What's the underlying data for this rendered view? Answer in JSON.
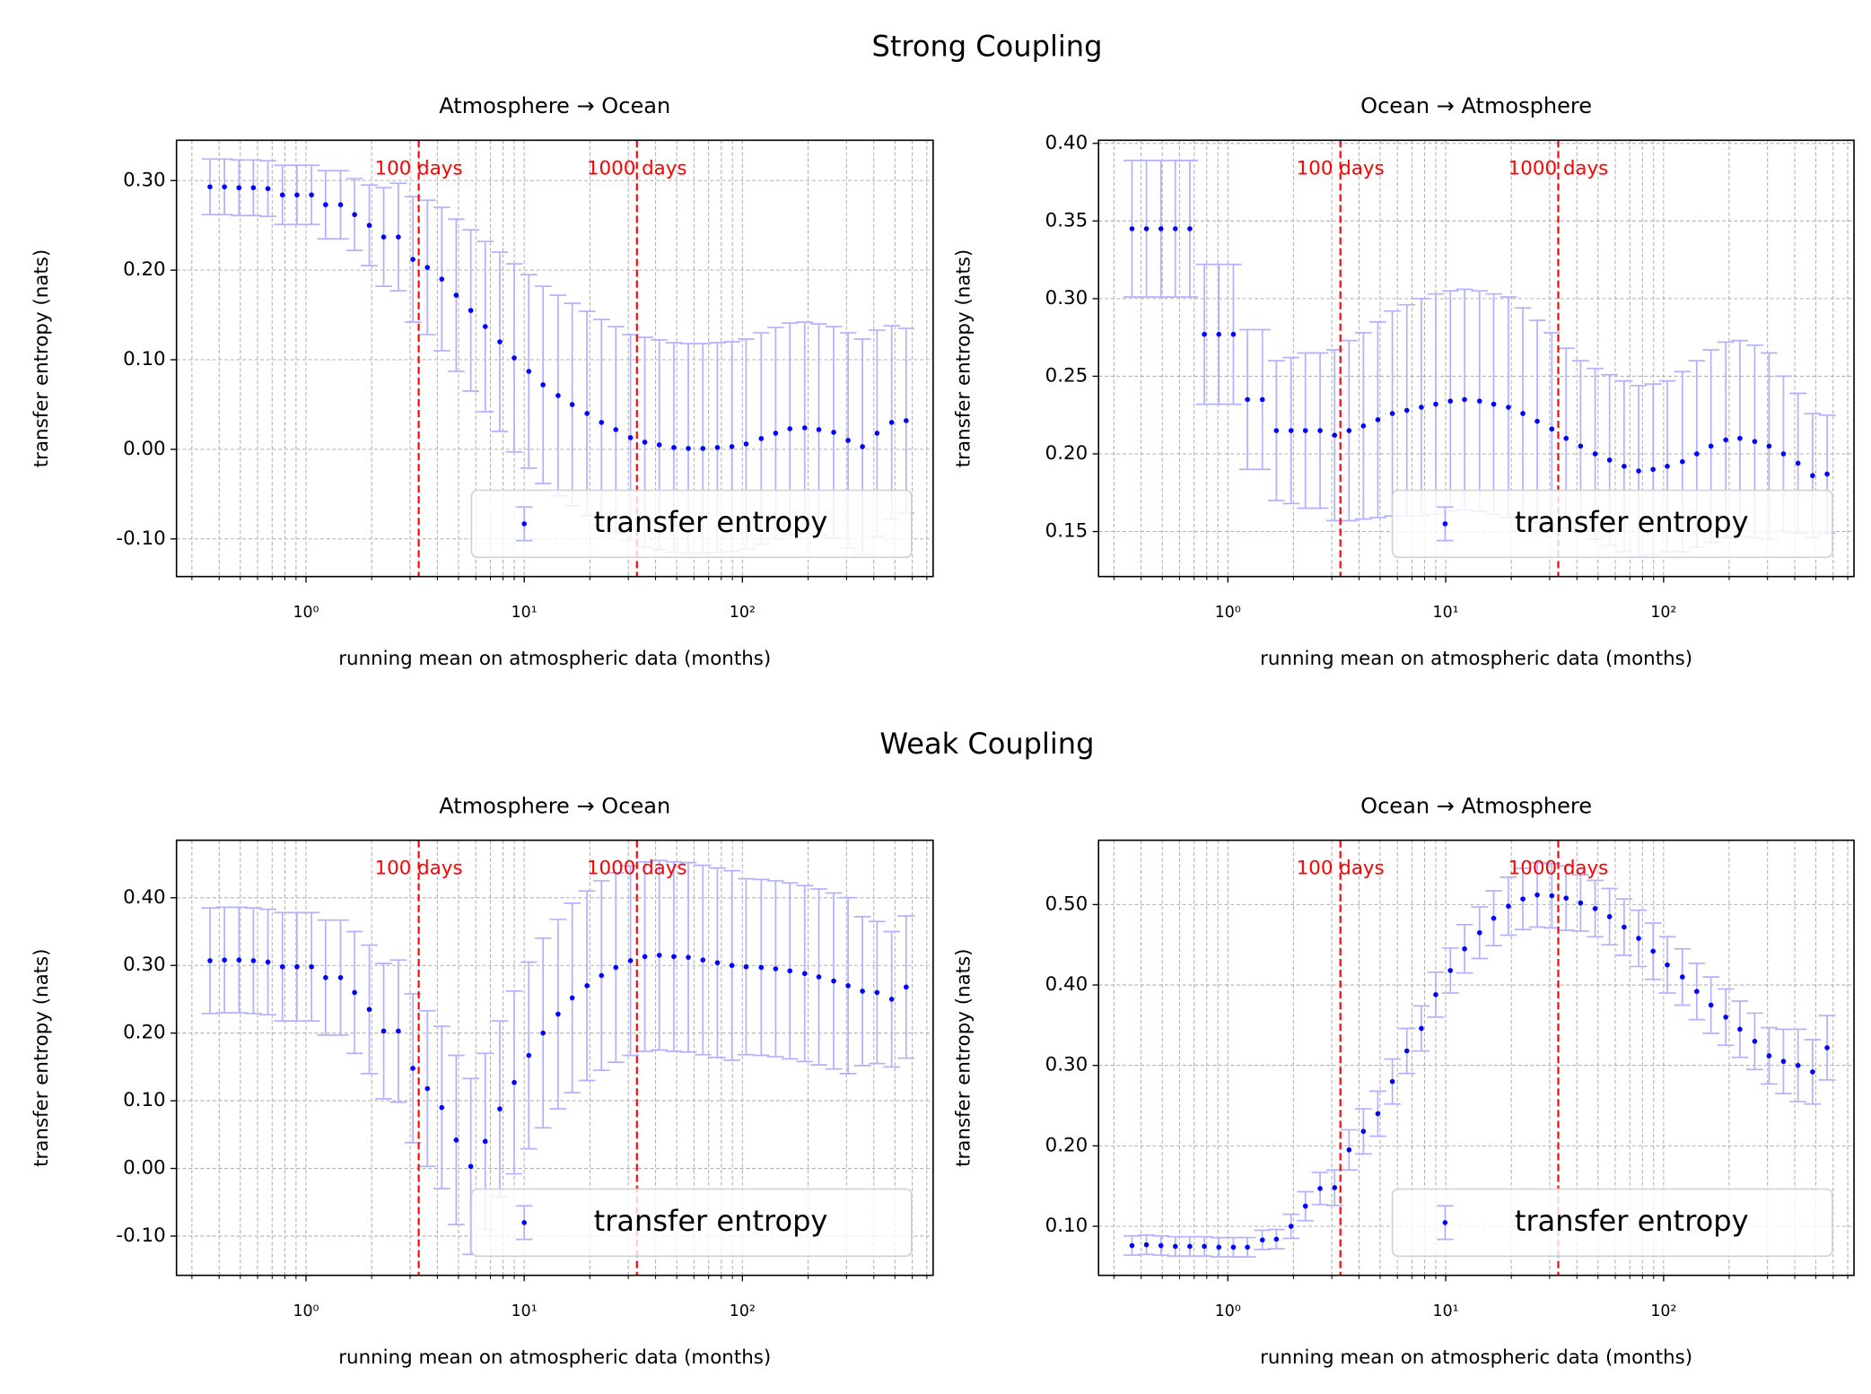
{
  "row_titles": [
    "Strong Coupling",
    "Weak Coupling"
  ],
  "chart_data": [
    {
      "type": "errorbar",
      "title": "Atmosphere → Ocean",
      "xlabel": "running mean on atmospheric data (months)",
      "ylabel": "transfer entropy (nats)",
      "xscale": "log",
      "xlim": [
        0.255,
        748
      ],
      "ylim": [
        -0.142,
        0.345
      ],
      "xticks": [
        {
          "value": 1,
          "label": "10⁰"
        },
        {
          "value": 10,
          "label": "10¹"
        },
        {
          "value": 100,
          "label": "10²"
        }
      ],
      "xticks_minor": [
        0.3,
        0.4,
        0.5,
        0.6,
        0.7,
        0.8,
        0.9,
        2,
        3,
        4,
        5,
        6,
        7,
        8,
        9,
        20,
        30,
        40,
        50,
        60,
        70,
        80,
        90,
        200,
        300,
        400,
        500,
        600,
        700
      ],
      "yticks": [
        {
          "value": -0.1,
          "label": "-0.10"
        },
        {
          "value": 0,
          "label": "0.00"
        },
        {
          "value": 0.1,
          "label": "0.10"
        },
        {
          "value": 0.2,
          "label": "0.20"
        },
        {
          "value": 0.3,
          "label": "0.30"
        }
      ],
      "grid": true,
      "legend": "lower right",
      "vlines": [
        {
          "x": 3.285,
          "label": "100 days",
          "color": "#ff0000"
        },
        {
          "x": 32.85,
          "label": "1000 days",
          "color": "#ff0000"
        }
      ],
      "x": [
        0.363,
        0.423,
        0.493,
        0.574,
        0.669,
        0.78,
        0.909,
        1.06,
        1.23,
        1.44,
        1.67,
        1.95,
        2.27,
        2.65,
        3.09,
        3.6,
        4.19,
        4.88,
        5.69,
        6.63,
        7.73,
        9.0,
        10.5,
        12.2,
        14.3,
        16.6,
        19.4,
        22.6,
        26.3,
        30.7,
        35.7,
        41.6,
        48.5,
        56.5,
        65.9,
        76.8,
        89.5,
        104,
        122,
        142,
        165,
        193,
        224,
        262,
        305,
        355,
        414,
        483,
        563
      ],
      "series": [
        {
          "name": "transfer entropy",
          "color": "#0000ff",
          "error_color": "#b2b2ff",
          "values": [
            0.293,
            0.293,
            0.292,
            0.292,
            0.291,
            0.284,
            0.284,
            0.284,
            0.273,
            0.273,
            0.262,
            0.25,
            0.237,
            0.237,
            0.212,
            0.203,
            0.19,
            0.172,
            0.155,
            0.137,
            0.12,
            0.102,
            0.087,
            0.072,
            0.06,
            0.05,
            0.04,
            0.03,
            0.022,
            0.013,
            0.008,
            0.005,
            0.002,
            0.001,
            0.001,
            0.002,
            0.003,
            0.006,
            0.012,
            0.018,
            0.023,
            0.024,
            0.022,
            0.019,
            0.01,
            0.003,
            0.018,
            0.03,
            0.032
          ],
          "errors": [
            0.031,
            0.031,
            0.031,
            0.031,
            0.031,
            0.033,
            0.033,
            0.033,
            0.038,
            0.038,
            0.04,
            0.045,
            0.055,
            0.06,
            0.07,
            0.075,
            0.08,
            0.085,
            0.09,
            0.095,
            0.1,
            0.105,
            0.108,
            0.11,
            0.112,
            0.113,
            0.114,
            0.115,
            0.115,
            0.115,
            0.117,
            0.117,
            0.117,
            0.117,
            0.117,
            0.117,
            0.117,
            0.117,
            0.118,
            0.118,
            0.118,
            0.118,
            0.118,
            0.118,
            0.12,
            0.12,
            0.115,
            0.108,
            0.103
          ]
        }
      ]
    },
    {
      "type": "errorbar",
      "title": "Ocean → Atmosphere",
      "xlabel": "running mean on atmospheric data (months)",
      "ylabel": "transfer entropy (nats)",
      "xscale": "log",
      "xlim": [
        0.255,
        748
      ],
      "ylim": [
        0.121,
        0.402
      ],
      "xticks": [
        {
          "value": 1,
          "label": "10⁰"
        },
        {
          "value": 10,
          "label": "10¹"
        },
        {
          "value": 100,
          "label": "10²"
        }
      ],
      "xticks_minor": [
        0.3,
        0.4,
        0.5,
        0.6,
        0.7,
        0.8,
        0.9,
        2,
        3,
        4,
        5,
        6,
        7,
        8,
        9,
        20,
        30,
        40,
        50,
        60,
        70,
        80,
        90,
        200,
        300,
        400,
        500,
        600,
        700
      ],
      "yticks": [
        {
          "value": 0.15,
          "label": "0.15"
        },
        {
          "value": 0.2,
          "label": "0.20"
        },
        {
          "value": 0.25,
          "label": "0.25"
        },
        {
          "value": 0.3,
          "label": "0.30"
        },
        {
          "value": 0.35,
          "label": "0.35"
        },
        {
          "value": 0.4,
          "label": "0.40"
        }
      ],
      "grid": true,
      "legend": "lower right",
      "vlines": [
        {
          "x": 3.285,
          "label": "100 days",
          "color": "#ff0000"
        },
        {
          "x": 32.85,
          "label": "1000 days",
          "color": "#ff0000"
        }
      ],
      "x": [
        0.363,
        0.423,
        0.493,
        0.574,
        0.669,
        0.78,
        0.909,
        1.06,
        1.23,
        1.44,
        1.67,
        1.95,
        2.27,
        2.65,
        3.09,
        3.6,
        4.19,
        4.88,
        5.69,
        6.63,
        7.73,
        9.0,
        10.5,
        12.2,
        14.3,
        16.6,
        19.4,
        22.6,
        26.3,
        30.7,
        35.7,
        41.6,
        48.5,
        56.5,
        65.9,
        76.8,
        89.5,
        104,
        122,
        142,
        165,
        193,
        224,
        262,
        305,
        355,
        414,
        483,
        563
      ],
      "series": [
        {
          "name": "transfer entropy",
          "color": "#0000ff",
          "error_color": "#b2b2ff",
          "values": [
            0.345,
            0.345,
            0.345,
            0.345,
            0.345,
            0.277,
            0.277,
            0.277,
            0.235,
            0.235,
            0.215,
            0.215,
            0.215,
            0.215,
            0.212,
            0.215,
            0.218,
            0.222,
            0.226,
            0.228,
            0.23,
            0.232,
            0.234,
            0.235,
            0.234,
            0.232,
            0.23,
            0.226,
            0.221,
            0.216,
            0.21,
            0.205,
            0.2,
            0.196,
            0.192,
            0.189,
            0.19,
            0.192,
            0.195,
            0.2,
            0.205,
            0.209,
            0.21,
            0.208,
            0.205,
            0.2,
            0.194,
            0.186,
            0.187
          ],
          "errors": [
            0.044,
            0.044,
            0.044,
            0.044,
            0.044,
            0.045,
            0.045,
            0.045,
            0.045,
            0.045,
            0.045,
            0.047,
            0.05,
            0.05,
            0.055,
            0.058,
            0.06,
            0.063,
            0.066,
            0.068,
            0.07,
            0.071,
            0.071,
            0.071,
            0.071,
            0.071,
            0.071,
            0.068,
            0.065,
            0.062,
            0.058,
            0.055,
            0.055,
            0.055,
            0.055,
            0.055,
            0.055,
            0.055,
            0.058,
            0.06,
            0.062,
            0.063,
            0.063,
            0.062,
            0.06,
            0.05,
            0.045,
            0.04,
            0.038
          ]
        }
      ]
    },
    {
      "type": "errorbar",
      "title": "Atmosphere → Ocean",
      "xlabel": "running mean on atmospheric data (months)",
      "ylabel": "transfer entropy (nats)",
      "xscale": "log",
      "xlim": [
        0.255,
        748
      ],
      "ylim": [
        -0.158,
        0.485
      ],
      "xticks": [
        {
          "value": 1,
          "label": "10⁰"
        },
        {
          "value": 10,
          "label": "10¹"
        },
        {
          "value": 100,
          "label": "10²"
        }
      ],
      "xticks_minor": [
        0.3,
        0.4,
        0.5,
        0.6,
        0.7,
        0.8,
        0.9,
        2,
        3,
        4,
        5,
        6,
        7,
        8,
        9,
        20,
        30,
        40,
        50,
        60,
        70,
        80,
        90,
        200,
        300,
        400,
        500,
        600,
        700
      ],
      "yticks": [
        {
          "value": -0.1,
          "label": "-0.10"
        },
        {
          "value": 0,
          "label": "0.00"
        },
        {
          "value": 0.1,
          "label": "0.10"
        },
        {
          "value": 0.2,
          "label": "0.20"
        },
        {
          "value": 0.3,
          "label": "0.30"
        },
        {
          "value": 0.4,
          "label": "0.40"
        }
      ],
      "grid": true,
      "legend": "lower right",
      "vlines": [
        {
          "x": 3.285,
          "label": "100 days",
          "color": "#ff0000"
        },
        {
          "x": 32.85,
          "label": "1000 days",
          "color": "#ff0000"
        }
      ],
      "x": [
        0.363,
        0.423,
        0.493,
        0.574,
        0.669,
        0.78,
        0.909,
        1.06,
        1.23,
        1.44,
        1.67,
        1.95,
        2.27,
        2.65,
        3.09,
        3.6,
        4.19,
        4.88,
        5.69,
        6.63,
        7.73,
        9.0,
        10.5,
        12.2,
        14.3,
        16.6,
        19.4,
        22.6,
        26.3,
        30.7,
        35.7,
        41.6,
        48.5,
        56.5,
        65.9,
        76.8,
        89.5,
        104,
        122,
        142,
        165,
        193,
        224,
        262,
        305,
        355,
        414,
        483,
        563
      ],
      "series": [
        {
          "name": "transfer entropy",
          "color": "#0000ff",
          "error_color": "#b2b2ff",
          "values": [
            0.307,
            0.308,
            0.308,
            0.307,
            0.305,
            0.298,
            0.298,
            0.298,
            0.282,
            0.282,
            0.26,
            0.235,
            0.203,
            0.203,
            0.148,
            0.118,
            0.09,
            0.042,
            0.003,
            0.04,
            0.088,
            0.127,
            0.167,
            0.2,
            0.228,
            0.252,
            0.27,
            0.285,
            0.297,
            0.307,
            0.313,
            0.315,
            0.313,
            0.312,
            0.308,
            0.304,
            0.3,
            0.298,
            0.297,
            0.295,
            0.292,
            0.288,
            0.283,
            0.277,
            0.27,
            0.262,
            0.26,
            0.25,
            0.268
          ],
          "errors": [
            0.078,
            0.078,
            0.078,
            0.078,
            0.078,
            0.08,
            0.08,
            0.08,
            0.085,
            0.085,
            0.09,
            0.095,
            0.1,
            0.105,
            0.11,
            0.115,
            0.12,
            0.125,
            0.13,
            0.13,
            0.13,
            0.135,
            0.138,
            0.14,
            0.14,
            0.14,
            0.14,
            0.14,
            0.14,
            0.14,
            0.14,
            0.14,
            0.14,
            0.14,
            0.14,
            0.14,
            0.14,
            0.13,
            0.13,
            0.13,
            0.13,
            0.13,
            0.13,
            0.13,
            0.13,
            0.11,
            0.105,
            0.1,
            0.105
          ]
        }
      ]
    },
    {
      "type": "errorbar",
      "title": "Ocean → Atmosphere",
      "xlabel": "running mean on atmospheric data (months)",
      "ylabel": "transfer entropy (nats)",
      "xscale": "log",
      "xlim": [
        0.255,
        748
      ],
      "ylim": [
        0.039,
        0.58
      ],
      "xticks": [
        {
          "value": 1,
          "label": "10⁰"
        },
        {
          "value": 10,
          "label": "10¹"
        },
        {
          "value": 100,
          "label": "10²"
        }
      ],
      "xticks_minor": [
        0.3,
        0.4,
        0.5,
        0.6,
        0.7,
        0.8,
        0.9,
        2,
        3,
        4,
        5,
        6,
        7,
        8,
        9,
        20,
        30,
        40,
        50,
        60,
        70,
        80,
        90,
        200,
        300,
        400,
        500,
        600,
        700
      ],
      "yticks": [
        {
          "value": 0.1,
          "label": "0.10"
        },
        {
          "value": 0.2,
          "label": "0.20"
        },
        {
          "value": 0.3,
          "label": "0.30"
        },
        {
          "value": 0.4,
          "label": "0.40"
        },
        {
          "value": 0.5,
          "label": "0.50"
        }
      ],
      "grid": true,
      "legend": "lower right",
      "vlines": [
        {
          "x": 3.285,
          "label": "100 days",
          "color": "#ff0000"
        },
        {
          "x": 32.85,
          "label": "1000 days",
          "color": "#ff0000"
        }
      ],
      "x": [
        0.363,
        0.423,
        0.493,
        0.574,
        0.669,
        0.78,
        0.909,
        1.06,
        1.23,
        1.44,
        1.67,
        1.95,
        2.27,
        2.65,
        3.09,
        3.6,
        4.19,
        4.88,
        5.69,
        6.63,
        7.73,
        9.0,
        10.5,
        12.2,
        14.3,
        16.6,
        19.4,
        22.6,
        26.3,
        30.7,
        35.7,
        41.6,
        48.5,
        56.5,
        65.9,
        76.8,
        89.5,
        104,
        122,
        142,
        165,
        193,
        224,
        262,
        305,
        355,
        414,
        483,
        563
      ],
      "series": [
        {
          "name": "transfer entropy",
          "color": "#0000ff",
          "error_color": "#b2b2ff",
          "values": [
            0.076,
            0.077,
            0.076,
            0.075,
            0.075,
            0.075,
            0.074,
            0.074,
            0.074,
            0.083,
            0.084,
            0.1,
            0.125,
            0.147,
            0.148,
            0.195,
            0.218,
            0.24,
            0.28,
            0.318,
            0.346,
            0.388,
            0.418,
            0.445,
            0.465,
            0.483,
            0.498,
            0.507,
            0.512,
            0.511,
            0.508,
            0.502,
            0.495,
            0.485,
            0.472,
            0.458,
            0.442,
            0.425,
            0.41,
            0.392,
            0.375,
            0.36,
            0.345,
            0.33,
            0.312,
            0.305,
            0.3,
            0.292,
            0.322
          ],
          "errors": [
            0.012,
            0.012,
            0.012,
            0.012,
            0.012,
            0.012,
            0.012,
            0.012,
            0.012,
            0.012,
            0.012,
            0.015,
            0.018,
            0.02,
            0.022,
            0.025,
            0.028,
            0.028,
            0.028,
            0.028,
            0.028,
            0.028,
            0.028,
            0.03,
            0.032,
            0.034,
            0.036,
            0.038,
            0.04,
            0.04,
            0.04,
            0.035,
            0.035,
            0.035,
            0.035,
            0.035,
            0.035,
            0.035,
            0.035,
            0.035,
            0.035,
            0.035,
            0.035,
            0.035,
            0.035,
            0.04,
            0.045,
            0.04,
            0.04
          ]
        }
      ]
    }
  ]
}
